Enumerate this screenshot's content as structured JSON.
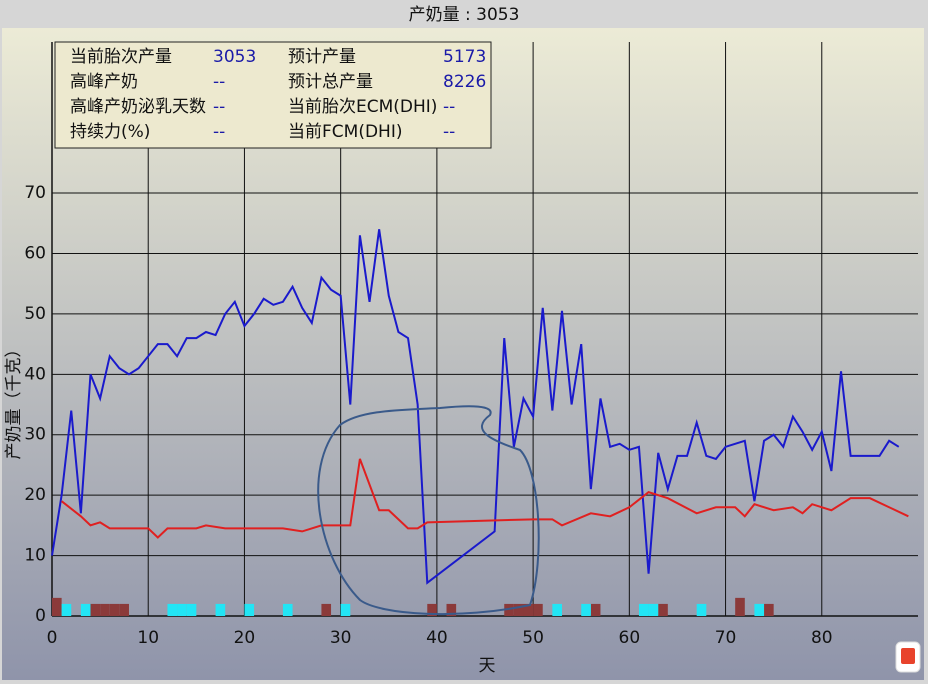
{
  "chart_data": {
    "type": "line",
    "title": "产奶量 : 3053",
    "x_label": "天",
    "y_label": "产奶量（千克）",
    "info_panel": [
      [
        "当前胎次产量",
        "3053",
        "预计产量",
        "5173"
      ],
      [
        "高峰产奶",
        "--",
        "预计总产量",
        "8226"
      ],
      [
        "高峰产奶泌乳天数",
        "--",
        "当前胎次ECM(DHI)",
        "--"
      ],
      [
        "持续力(%)",
        "--",
        "当前FCM(DHI)",
        "--"
      ]
    ],
    "xlim": [
      0,
      90
    ],
    "xticks": [
      0,
      10,
      20,
      30,
      40,
      50,
      60,
      70,
      80
    ],
    "ylim": [
      0,
      95
    ],
    "yticks": [
      0,
      10,
      20,
      30,
      40,
      50,
      60,
      70
    ],
    "grid": true,
    "series": [
      {
        "color": "#1a1acc",
        "kind": "line",
        "x": [
          0,
          1,
          2,
          3,
          4,
          5,
          6,
          7,
          8,
          9,
          10,
          11,
          12,
          13,
          14,
          15,
          16,
          17,
          18,
          19,
          20,
          21,
          22,
          23,
          24,
          25,
          26,
          27,
          28,
          29,
          30,
          31,
          32,
          33,
          34,
          35,
          36,
          37,
          38,
          39,
          46,
          47,
          48,
          49,
          50,
          51,
          52,
          53,
          54,
          55,
          56,
          57,
          58,
          59,
          60,
          61,
          62,
          63,
          64,
          65,
          66,
          67,
          68,
          69,
          70,
          71,
          72,
          73,
          74,
          75,
          76,
          77,
          78,
          79,
          80,
          81,
          82,
          83,
          84,
          85,
          86,
          87,
          88
        ],
        "values": [
          10,
          20,
          34,
          17,
          40,
          36,
          43,
          41,
          40,
          41,
          43,
          45,
          45,
          43,
          46,
          46,
          47,
          46.5,
          50,
          52,
          48,
          50,
          52.5,
          51.5,
          52,
          54.5,
          51,
          48.5,
          56,
          54,
          53,
          35,
          63,
          52,
          64,
          53,
          47,
          46,
          35,
          5.5,
          14,
          46,
          28,
          36,
          33,
          51,
          34,
          50.5,
          35,
          45,
          21,
          36,
          28,
          28.5,
          27.5,
          28,
          7,
          27,
          21,
          26.5,
          26.5,
          32,
          26.5,
          26,
          28,
          28.5,
          29,
          19,
          29,
          30,
          28,
          33,
          30.5,
          27.5,
          30.5,
          24,
          40.5,
          26.5,
          26.5,
          26.5,
          26.5,
          29,
          28
        ]
      },
      {
        "color": "#e02020",
        "kind": "line",
        "x": [
          1,
          3,
          4,
          5,
          6,
          8,
          10,
          11,
          12,
          15,
          16,
          18,
          22,
          24,
          26,
          28,
          31,
          32,
          34,
          35,
          37,
          38,
          39,
          50,
          52,
          53,
          56,
          58,
          60,
          62,
          64,
          67,
          69,
          71,
          72,
          73,
          75,
          77,
          78,
          79,
          81,
          83,
          85,
          87,
          89
        ],
        "values": [
          19,
          16.5,
          15,
          15.5,
          14.5,
          14.5,
          14.5,
          13,
          14.5,
          14.5,
          15,
          14.5,
          14.5,
          14.5,
          14,
          15,
          15,
          26,
          17.5,
          17.5,
          14.5,
          14.5,
          15.5,
          16,
          16,
          15,
          17,
          16.5,
          18,
          20.5,
          19.5,
          17,
          18,
          18,
          16.5,
          18.5,
          17.5,
          18,
          17,
          18.5,
          17.5,
          19.5,
          19.5,
          18,
          16.5
        ]
      },
      {
        "color": "#8b3a3a",
        "kind": "bar",
        "x": [
          0,
          4,
          5,
          6,
          7,
          28,
          39,
          41,
          47,
          48,
          49,
          50,
          56,
          63,
          71,
          74
        ],
        "values": [
          3,
          2,
          2,
          2,
          2,
          2,
          2,
          2,
          2,
          2,
          2,
          2,
          2,
          2,
          3,
          2
        ]
      },
      {
        "color": "#22e5f5",
        "kind": "bar",
        "x": [
          1,
          3,
          12,
          13,
          14,
          17,
          20,
          24,
          30,
          52,
          55,
          61,
          62,
          67,
          73
        ],
        "values": [
          2,
          2,
          2,
          2,
          2,
          2,
          2,
          2,
          2,
          2,
          2,
          2,
          2,
          2,
          2
        ]
      }
    ]
  }
}
